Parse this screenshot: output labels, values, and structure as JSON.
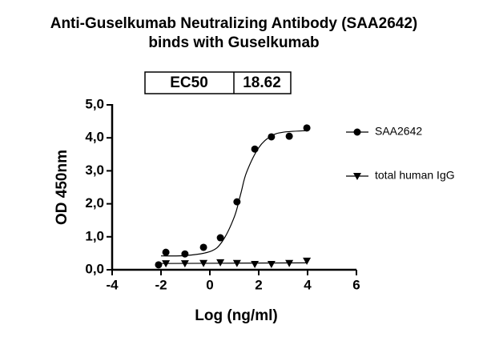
{
  "chart_data": {
    "type": "scatter",
    "title": [
      "Anti-Guselkumab Neutralizing Antibody (SAA2642)",
      "binds with Guselkumab"
    ],
    "x_label": "Log (ng/ml)",
    "y_label": "OD 450nm",
    "ec50_table": [
      "EC50",
      "18.62"
    ],
    "xlim": [
      -4,
      6
    ],
    "xticks": [
      -4,
      -2,
      0,
      2,
      4,
      6
    ],
    "ylim": [
      0,
      5
    ],
    "yticks": [
      {
        "value": 0,
        "label": "0,0"
      },
      {
        "value": 1,
        "label": "1,0"
      },
      {
        "value": 2,
        "label": "2,0"
      },
      {
        "value": 3,
        "label": "3,0"
      },
      {
        "value": 4,
        "label": "4,0"
      },
      {
        "value": 5,
        "label": "5,0"
      }
    ],
    "series": [
      {
        "name": "SAA2642",
        "color": "#000000",
        "marker": "circle",
        "x": [
          -2.1,
          -1.8,
          -1.02,
          -0.26,
          0.43,
          1.11,
          1.84,
          2.52,
          3.25,
          3.97
        ],
        "values": [
          0.15,
          0.53,
          0.48,
          0.68,
          0.97,
          2.06,
          3.66,
          4.03,
          4.05,
          4.3
        ],
        "fit": {
          "x": [
            -2,
            -1,
            0,
            0.5,
            1,
            1.27,
            1.5,
            2,
            2.5,
            3,
            4
          ],
          "values": [
            0.42,
            0.43,
            0.55,
            0.85,
            1.6,
            2.32,
            2.95,
            3.7,
            4.05,
            4.17,
            4.22
          ]
        }
      },
      {
        "name": "total human IgG",
        "color": "#000000",
        "marker": "triangle-down",
        "x": [
          -1.8,
          -1.02,
          -0.26,
          0.43,
          1.11,
          1.84,
          2.52,
          3.25,
          3.97
        ],
        "values": [
          0.19,
          0.19,
          0.2,
          0.22,
          0.2,
          0.17,
          0.17,
          0.2,
          0.27
        ],
        "fit": {
          "x": [
            -2,
            4
          ],
          "values": [
            0.19,
            0.21
          ]
        }
      }
    ]
  }
}
